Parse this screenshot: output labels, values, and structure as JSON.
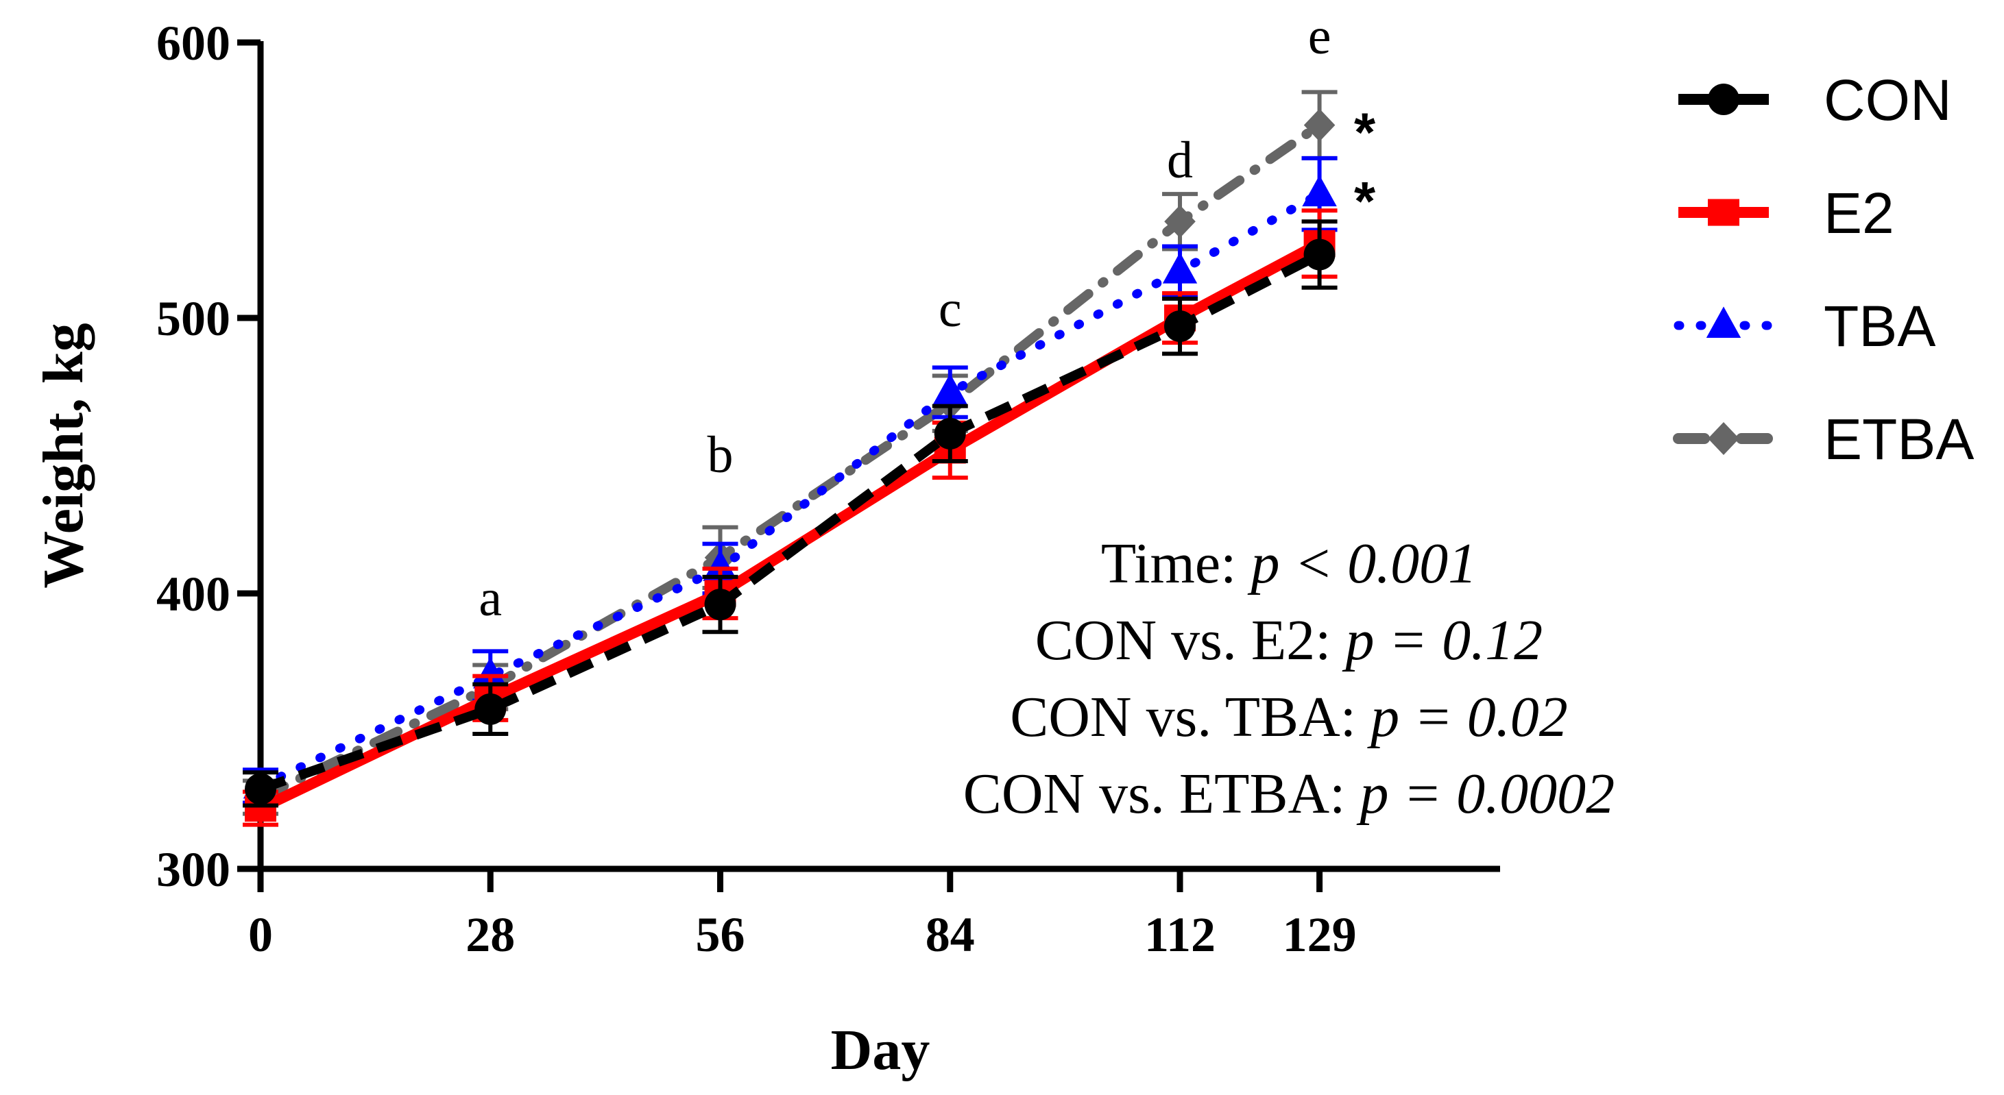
{
  "chart_data": {
    "type": "line",
    "xlabel": "Day",
    "ylabel": "Weight, kg",
    "x": [
      0,
      28,
      56,
      84,
      112,
      129
    ],
    "x_tick_labels": [
      "0",
      "28",
      "56",
      "84",
      "112",
      "129"
    ],
    "xlim": [
      0,
      151
    ],
    "ylim": [
      300,
      600
    ],
    "y_ticks": [
      300,
      400,
      500,
      600
    ],
    "y_tick_labels": [
      "300",
      "400",
      "500",
      "600"
    ],
    "grid": false,
    "legend_position": "right",
    "series": [
      {
        "name": "CON",
        "color": "#000000",
        "marker": "circle",
        "line": "dashed",
        "values": [
          329,
          358,
          396,
          458,
          497,
          523
        ],
        "errors": [
          6,
          9,
          10,
          10,
          10,
          12
        ]
      },
      {
        "name": "E2",
        "color": "#ff0000",
        "marker": "square",
        "line": "solid",
        "values": [
          322,
          362,
          400,
          452,
          500,
          527
        ],
        "errors": [
          6,
          8,
          9,
          10,
          9,
          12
        ]
      },
      {
        "name": "TBA",
        "color": "#0000ff",
        "marker": "triangle",
        "line": "dotted",
        "values": [
          330,
          370,
          409,
          473,
          517,
          545
        ],
        "errors": [
          6,
          9,
          9,
          9,
          9,
          13
        ]
      },
      {
        "name": "ETBA",
        "color": "#666666",
        "marker": "diamond",
        "line": "dashdot",
        "values": [
          326,
          366,
          413,
          469,
          535,
          570
        ],
        "errors": [
          6,
          8,
          11,
          10,
          10,
          12
        ]
      }
    ],
    "annotations": [
      {
        "text": "a",
        "x": 28,
        "y": 392
      },
      {
        "text": "b",
        "x": 56,
        "y": 444
      },
      {
        "text": "c",
        "x": 84,
        "y": 497
      },
      {
        "text": "d",
        "x": 112,
        "y": 551
      },
      {
        "text": "e",
        "x": 129,
        "y": 596
      }
    ],
    "significance_marks": [
      {
        "text": "*",
        "series": "ETBA",
        "x": 129
      },
      {
        "text": "*",
        "series": "TBA",
        "x": 129
      }
    ],
    "stats": [
      {
        "label": "Time: ",
        "p": "p < 0.001"
      },
      {
        "label": "CON vs.  E2: ",
        "p": "p = 0.12"
      },
      {
        "label": "CON vs. TBA: ",
        "p": "p = 0.02"
      },
      {
        "label": "CON vs. ETBA: ",
        "p": "p = 0.0002"
      }
    ]
  }
}
